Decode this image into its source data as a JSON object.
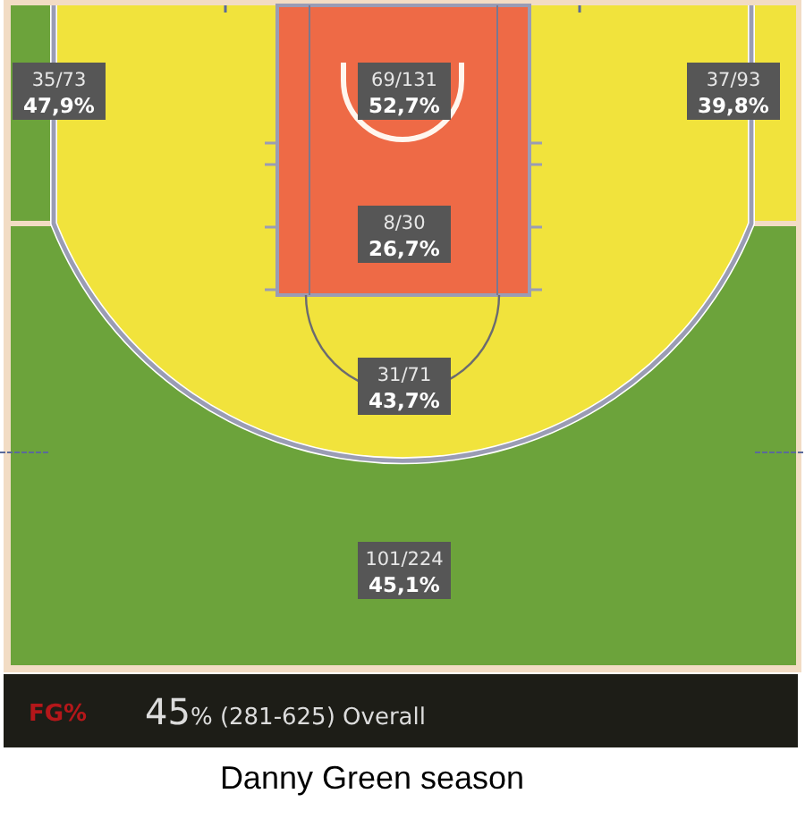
{
  "chart_data": {
    "type": "other",
    "title": "Danny Green season",
    "categories": [
      null,
      null,
      null,
      null,
      null,
      null
    ],
    "values": [
      47.9,
      52.7,
      39.8,
      26.7,
      43.7,
      45.1
    ],
    "value_labels": [
      "35/73\n47,9%",
      "69/131\n52,7%",
      "37/93\n39,8%",
      "8/30\n26,7%",
      "31/71\n43,7%",
      "101/224\n45,1%"
    ],
    "colors": [
      "#6ca33b",
      "#ee6a46",
      "#f1e33c",
      "#ee6a46",
      "#f1e33c",
      "#6ca33b"
    ],
    "annotations": [
      "FG%",
      "45% (281-625) Overall"
    ]
  }
}
